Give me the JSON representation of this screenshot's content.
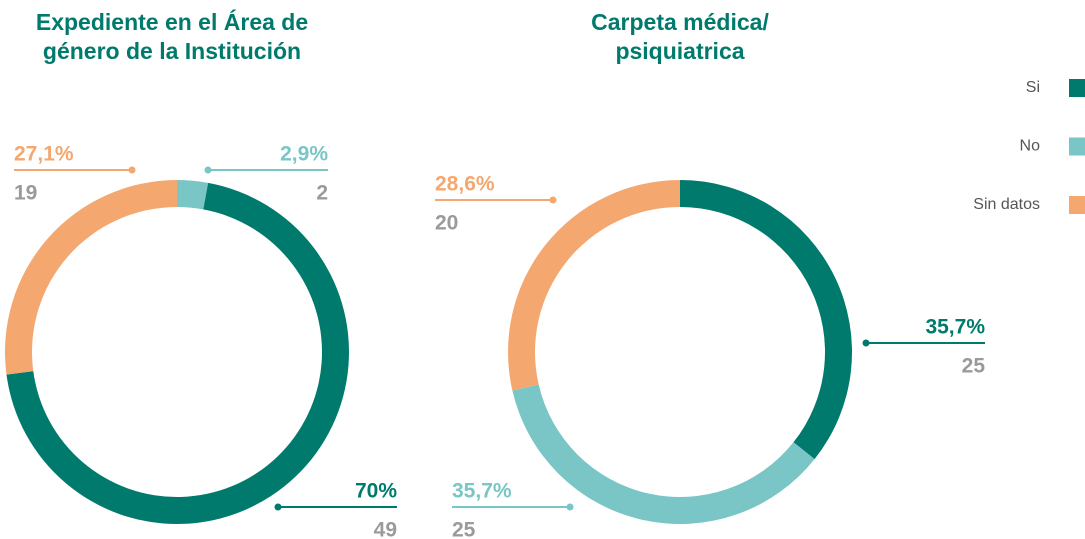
{
  "chart_data": [
    {
      "type": "donut",
      "title": "Expediente en el Área de género de la Institución",
      "categories": [
        "No",
        "Si",
        "Sin datos"
      ],
      "values": [
        2.9,
        70,
        27.1
      ],
      "value_labels": [
        "2,9%",
        "70%",
        "27,1%"
      ],
      "counts": [
        2,
        49,
        19
      ],
      "colors": [
        "#7ac6c6",
        "#007a6c",
        "#f4a76f"
      ]
    },
    {
      "type": "donut",
      "title": "Carpeta médica/ psiquiatrica",
      "categories": [
        "Si",
        "No",
        "Sin datos"
      ],
      "values": [
        35.7,
        35.7,
        28.6
      ],
      "value_labels": [
        "35,7%",
        "35,7%",
        "28,6%"
      ],
      "counts": [
        25,
        25,
        20
      ],
      "colors": [
        "#007a6c",
        "#7ac6c6",
        "#f4a76f"
      ]
    }
  ],
  "legend": {
    "labels": [
      "Si",
      "No",
      "Sin datos"
    ],
    "colors": [
      "#007a6c",
      "#7ac6c6",
      "#f4a76f"
    ]
  }
}
